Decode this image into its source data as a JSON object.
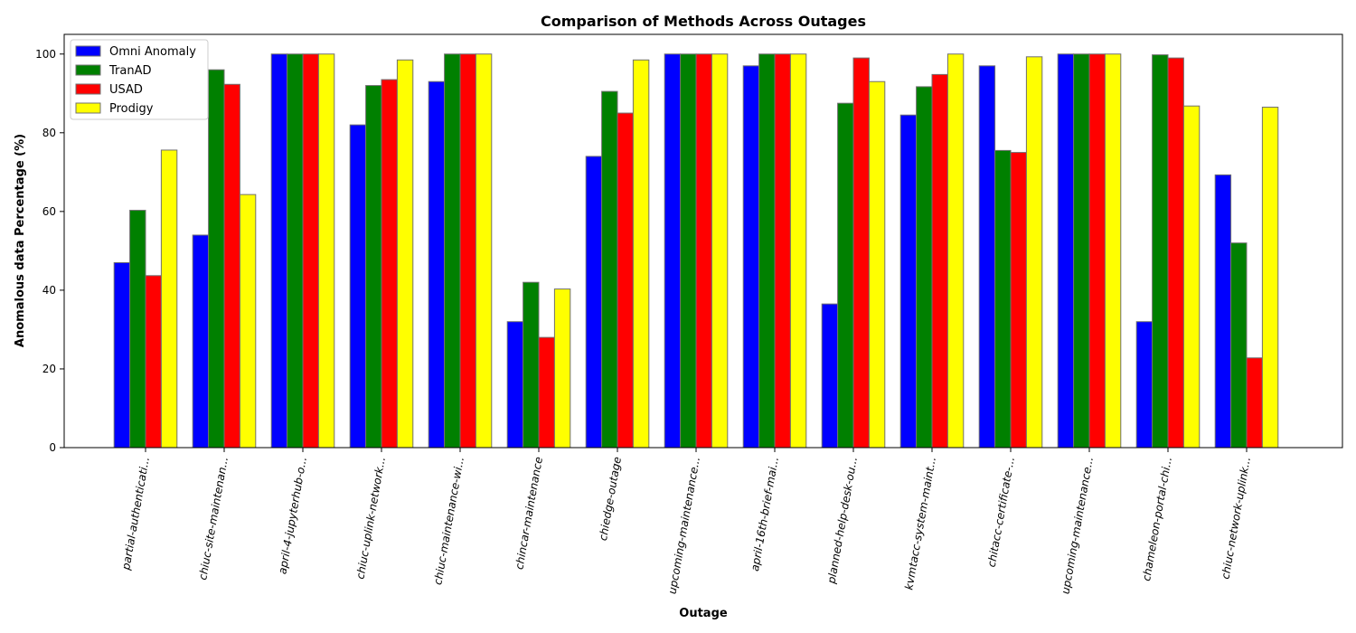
{
  "chart_data": {
    "type": "bar",
    "title": "Comparison of Methods Across Outages",
    "xlabel": "Outage",
    "ylabel": "Anomalous data Percentage (%)",
    "ylim": [
      0,
      105
    ],
    "yticks": [
      0,
      20,
      40,
      60,
      80,
      100
    ],
    "legend_position": "top-left",
    "grid": false,
    "categories": [
      "partial-authenticati...",
      "chiuc-site-maintenan...",
      "april-4-jupyterhub-o...",
      "chiuc-uplink-network...",
      "chiuc-maintenance-wi...",
      "chincar-maintenance",
      "chiedge-outage",
      "upcoming-maintenance...",
      "april-16th-brief-mai...",
      "planned-help-desk-ou...",
      "kvmtacc-system-maint...",
      "chitacc-certificate-...",
      "upcoming-maintenance...",
      "chameleon-portal-chi...",
      "chiuc-network-uplink..."
    ],
    "series": [
      {
        "name": "Omni Anomaly",
        "color": "#0000ff",
        "values": [
          47,
          54,
          100,
          82,
          93,
          32,
          74,
          100,
          97,
          36.5,
          84.5,
          97,
          100,
          32,
          69.3
        ]
      },
      {
        "name": "TranAD",
        "color": "#008000",
        "values": [
          60.3,
          96,
          100,
          92,
          100,
          42,
          90.5,
          100,
          100,
          87.5,
          91.7,
          75.5,
          100,
          99.8,
          52
        ]
      },
      {
        "name": "USAD",
        "color": "#ff0000",
        "values": [
          43.7,
          92.3,
          100,
          93.5,
          100,
          28,
          85,
          100,
          100,
          99,
          94.8,
          75,
          100,
          99,
          22.8
        ]
      },
      {
        "name": "Prodigy",
        "color": "#ffff00",
        "values": [
          75.6,
          64.3,
          100,
          98.5,
          100,
          40.3,
          98.5,
          100,
          100,
          93,
          100,
          99.3,
          100,
          86.8,
          86.5
        ]
      }
    ]
  }
}
